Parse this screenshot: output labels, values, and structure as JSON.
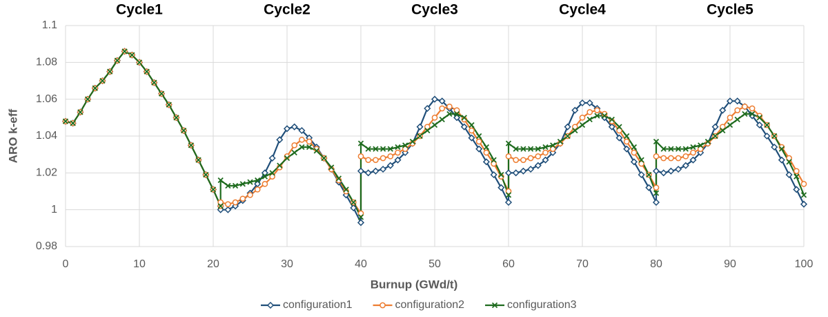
{
  "chart_data": {
    "type": "line",
    "annotations": [
      "Cycle1",
      "Cycle2",
      "Cycle3",
      "Cycle4",
      "Cycle5"
    ],
    "x_label": "Burnup (GWd/t)",
    "y_label": "ARO k-eff",
    "xlim": [
      0,
      100
    ],
    "xticks": [
      0,
      10,
      20,
      30,
      40,
      50,
      60,
      70,
      80,
      90,
      100
    ],
    "ylim": [
      0.98,
      1.1
    ],
    "yticks": [
      0.98,
      1,
      1.02,
      1.04,
      1.06,
      1.08,
      1.1
    ],
    "grid": true,
    "legend": "bottom",
    "x": [
      0,
      1,
      2,
      3,
      4,
      5,
      6,
      7,
      8,
      9,
      10,
      11,
      12,
      13,
      14,
      15,
      16,
      17,
      18,
      19,
      20,
      21,
      21,
      22,
      23,
      24,
      25,
      26,
      27,
      28,
      29,
      30,
      31,
      32,
      33,
      34,
      35,
      36,
      37,
      38,
      39,
      40,
      40,
      41,
      42,
      43,
      44,
      45,
      46,
      47,
      48,
      49,
      50,
      51,
      52,
      53,
      54,
      55,
      56,
      57,
      58,
      59,
      60,
      60,
      61,
      62,
      63,
      64,
      65,
      66,
      67,
      68,
      69,
      70,
      71,
      72,
      73,
      74,
      75,
      76,
      77,
      78,
      79,
      80,
      80,
      81,
      82,
      83,
      84,
      85,
      86,
      87,
      88,
      89,
      90,
      91,
      92,
      93,
      94,
      95,
      96,
      97,
      98,
      99,
      100
    ],
    "series": [
      {
        "name": "configuration1",
        "color": "#1f4e79",
        "marker": "diamond",
        "values": [
          1.048,
          1.047,
          1.053,
          1.06,
          1.066,
          1.07,
          1.075,
          1.081,
          1.086,
          1.084,
          1.08,
          1.075,
          1.069,
          1.063,
          1.057,
          1.05,
          1.043,
          1.035,
          1.027,
          1.019,
          1.011,
          1.002,
          1.0,
          1.0,
          1.002,
          1.005,
          1.009,
          1.014,
          1.02,
          1.028,
          1.038,
          1.044,
          1.045,
          1.043,
          1.039,
          1.034,
          1.028,
          1.022,
          1.015,
          1.008,
          1.001,
          0.993,
          1.021,
          1.02,
          1.021,
          1.022,
          1.024,
          1.027,
          1.031,
          1.036,
          1.045,
          1.055,
          1.06,
          1.059,
          1.055,
          1.05,
          1.045,
          1.039,
          1.033,
          1.026,
          1.019,
          1.012,
          1.004,
          1.02,
          1.02,
          1.021,
          1.022,
          1.024,
          1.027,
          1.031,
          1.036,
          1.045,
          1.054,
          1.058,
          1.058,
          1.055,
          1.05,
          1.045,
          1.039,
          1.033,
          1.026,
          1.019,
          1.012,
          1.004,
          1.021,
          1.02,
          1.021,
          1.022,
          1.024,
          1.027,
          1.031,
          1.036,
          1.045,
          1.054,
          1.059,
          1.059,
          1.056,
          1.051,
          1.046,
          1.04,
          1.034,
          1.027,
          1.019,
          1.011,
          1.003
        ]
      },
      {
        "name": "configuration2",
        "color": "#ed7d31",
        "marker": "circle",
        "values": [
          1.048,
          1.047,
          1.053,
          1.06,
          1.066,
          1.07,
          1.075,
          1.081,
          1.086,
          1.084,
          1.08,
          1.075,
          1.069,
          1.063,
          1.057,
          1.05,
          1.043,
          1.035,
          1.027,
          1.019,
          1.011,
          1.002,
          1.004,
          1.003,
          1.004,
          1.006,
          1.008,
          1.011,
          1.014,
          1.018,
          1.023,
          1.029,
          1.035,
          1.038,
          1.037,
          1.033,
          1.028,
          1.022,
          1.016,
          1.01,
          1.004,
          0.998,
          1.029,
          1.027,
          1.027,
          1.028,
          1.029,
          1.031,
          1.033,
          1.036,
          1.04,
          1.045,
          1.05,
          1.055,
          1.056,
          1.054,
          1.049,
          1.043,
          1.037,
          1.031,
          1.025,
          1.018,
          1.01,
          1.029,
          1.027,
          1.027,
          1.028,
          1.029,
          1.031,
          1.033,
          1.036,
          1.04,
          1.045,
          1.05,
          1.053,
          1.054,
          1.052,
          1.048,
          1.043,
          1.037,
          1.031,
          1.025,
          1.019,
          1.012,
          1.029,
          1.028,
          1.028,
          1.028,
          1.029,
          1.031,
          1.033,
          1.036,
          1.04,
          1.045,
          1.05,
          1.054,
          1.056,
          1.055,
          1.051,
          1.046,
          1.04,
          1.034,
          1.028,
          1.021,
          1.014
        ]
      },
      {
        "name": "configuration3",
        "color": "#1e6b1e",
        "marker": "x",
        "values": [
          1.048,
          1.047,
          1.053,
          1.06,
          1.066,
          1.07,
          1.075,
          1.081,
          1.086,
          1.084,
          1.08,
          1.075,
          1.069,
          1.063,
          1.057,
          1.05,
          1.043,
          1.035,
          1.027,
          1.019,
          1.011,
          1.002,
          1.016,
          1.013,
          1.013,
          1.014,
          1.015,
          1.016,
          1.018,
          1.02,
          1.024,
          1.028,
          1.031,
          1.034,
          1.034,
          1.032,
          1.028,
          1.023,
          1.017,
          1.011,
          1.004,
          0.996,
          1.036,
          1.033,
          1.033,
          1.033,
          1.033,
          1.034,
          1.035,
          1.037,
          1.04,
          1.043,
          1.046,
          1.049,
          1.052,
          1.052,
          1.05,
          1.046,
          1.04,
          1.034,
          1.027,
          1.019,
          1.008,
          1.036,
          1.033,
          1.033,
          1.033,
          1.033,
          1.034,
          1.035,
          1.037,
          1.04,
          1.043,
          1.046,
          1.049,
          1.051,
          1.051,
          1.049,
          1.045,
          1.04,
          1.034,
          1.027,
          1.019,
          1.009,
          1.037,
          1.033,
          1.033,
          1.033,
          1.033,
          1.034,
          1.035,
          1.037,
          1.04,
          1.043,
          1.046,
          1.049,
          1.052,
          1.052,
          1.05,
          1.046,
          1.04,
          1.033,
          1.026,
          1.018,
          1.008
        ]
      }
    ]
  }
}
